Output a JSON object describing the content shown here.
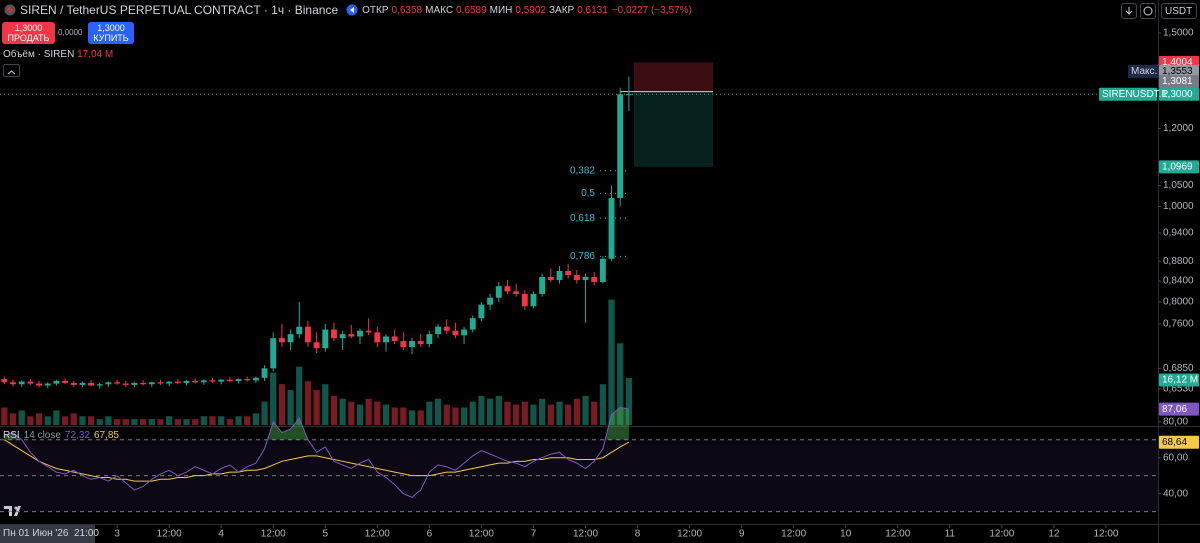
{
  "header": {
    "title": "SIREN / TetherUS PERPETUAL CONTRACT · 1ч · Binance",
    "stats": [
      {
        "label": "ОТКР",
        "value": "0,6358"
      },
      {
        "label": "МАКС",
        "value": "0,6589"
      },
      {
        "label": "МИН",
        "value": "0,5902"
      },
      {
        "label": "ЗАКР",
        "value": "0,6131"
      }
    ],
    "change": "−0,0227 (−3,57%)",
    "currency": "USDT"
  },
  "trade": {
    "sell_price": "1,3000",
    "sell_label": "ПРОДАТЬ",
    "spread": "0,0000",
    "buy_price": "1,3000",
    "buy_label": "КУПИТЬ"
  },
  "volume_legend": {
    "label": "Объём · SIREN",
    "value": "17,04 M"
  },
  "rsi_legend": {
    "label": "RSI",
    "params": "14 close",
    "values": [
      "72,32",
      "67,85"
    ]
  },
  "crosshair_time": "Пн 01 Июн '26  21:00",
  "chart_data": [
    {
      "type": "candlestick",
      "up_color": "#22ab94",
      "down_color": "#f23645",
      "log": true,
      "x": [
        1,
        3,
        5,
        7,
        9,
        11,
        13,
        15,
        17,
        19,
        21,
        23,
        25,
        27,
        29,
        31,
        33,
        35,
        37,
        39,
        41,
        43,
        45,
        47,
        49,
        51,
        53,
        55,
        57,
        59,
        61,
        63,
        65,
        67,
        69,
        71,
        73,
        75,
        77,
        79,
        81,
        83,
        85,
        87,
        89,
        91,
        93,
        95,
        97,
        99,
        101,
        103,
        105,
        107,
        109,
        111,
        113,
        115,
        117,
        119,
        121,
        123,
        125,
        127,
        129,
        131,
        133,
        135,
        137,
        139,
        141,
        143,
        145
      ],
      "open": [
        0.668,
        0.663,
        0.66,
        0.664,
        0.661,
        0.658,
        0.661,
        0.665,
        0.662,
        0.659,
        0.662,
        0.658,
        0.66,
        0.663,
        0.661,
        0.659,
        0.662,
        0.66,
        0.663,
        0.661,
        0.664,
        0.662,
        0.665,
        0.663,
        0.666,
        0.664,
        0.667,
        0.665,
        0.668,
        0.666,
        0.67,
        0.685,
        0.735,
        0.728,
        0.742,
        0.755,
        0.728,
        0.718,
        0.75,
        0.735,
        0.742,
        0.738,
        0.748,
        0.745,
        0.728,
        0.738,
        0.73,
        0.72,
        0.73,
        0.725,
        0.742,
        0.755,
        0.748,
        0.74,
        0.75,
        0.77,
        0.795,
        0.808,
        0.83,
        0.82,
        0.815,
        0.792,
        0.815,
        0.848,
        0.842,
        0.86,
        0.852,
        0.842,
        0.848,
        0.838,
        0.885,
        1.02,
        1.3
      ],
      "high": [
        0.672,
        0.667,
        0.666,
        0.668,
        0.665,
        0.663,
        0.667,
        0.669,
        0.665,
        0.664,
        0.666,
        0.662,
        0.664,
        0.667,
        0.665,
        0.663,
        0.666,
        0.664,
        0.667,
        0.665,
        0.668,
        0.666,
        0.669,
        0.667,
        0.67,
        0.668,
        0.671,
        0.669,
        0.672,
        0.672,
        0.69,
        0.745,
        0.76,
        0.75,
        0.8,
        0.765,
        0.745,
        0.76,
        0.762,
        0.748,
        0.758,
        0.752,
        0.77,
        0.755,
        0.742,
        0.75,
        0.745,
        0.735,
        0.742,
        0.748,
        0.76,
        0.768,
        0.762,
        0.755,
        0.775,
        0.8,
        0.815,
        0.838,
        0.842,
        0.835,
        0.822,
        0.82,
        0.855,
        0.865,
        0.87,
        0.875,
        0.862,
        0.855,
        0.858,
        0.89,
        1.05,
        1.32,
        1.3553
      ],
      "low": [
        0.66,
        0.657,
        0.656,
        0.659,
        0.655,
        0.654,
        0.658,
        0.66,
        0.656,
        0.655,
        0.657,
        0.653,
        0.656,
        0.659,
        0.656,
        0.655,
        0.658,
        0.656,
        0.659,
        0.657,
        0.66,
        0.658,
        0.661,
        0.659,
        0.662,
        0.66,
        0.663,
        0.661,
        0.664,
        0.662,
        0.665,
        0.68,
        0.72,
        0.715,
        0.735,
        0.72,
        0.71,
        0.712,
        0.73,
        0.715,
        0.735,
        0.725,
        0.74,
        0.72,
        0.712,
        0.725,
        0.715,
        0.708,
        0.72,
        0.72,
        0.735,
        0.742,
        0.735,
        0.725,
        0.745,
        0.765,
        0.785,
        0.8,
        0.815,
        0.81,
        0.785,
        0.788,
        0.81,
        0.838,
        0.835,
        0.845,
        0.835,
        0.762,
        0.832,
        0.835,
        0.88,
        1.0,
        1.25
      ],
      "close": [
        0.663,
        0.66,
        0.664,
        0.661,
        0.658,
        0.661,
        0.665,
        0.662,
        0.659,
        0.662,
        0.658,
        0.66,
        0.663,
        0.661,
        0.659,
        0.662,
        0.66,
        0.663,
        0.661,
        0.664,
        0.662,
        0.665,
        0.663,
        0.666,
        0.664,
        0.667,
        0.665,
        0.668,
        0.666,
        0.67,
        0.685,
        0.735,
        0.728,
        0.742,
        0.755,
        0.728,
        0.718,
        0.75,
        0.735,
        0.742,
        0.738,
        0.748,
        0.745,
        0.728,
        0.738,
        0.73,
        0.72,
        0.73,
        0.725,
        0.742,
        0.755,
        0.748,
        0.74,
        0.75,
        0.77,
        0.795,
        0.808,
        0.83,
        0.82,
        0.815,
        0.792,
        0.815,
        0.848,
        0.842,
        0.86,
        0.852,
        0.842,
        0.848,
        0.838,
        0.885,
        1.02,
        1.3,
        1.3
      ],
      "volume": [
        6,
        4,
        5,
        3,
        4,
        3,
        5,
        3,
        4,
        3,
        3,
        2,
        3,
        2,
        2,
        2,
        2,
        2,
        2,
        3,
        2,
        2,
        2,
        3,
        3,
        3,
        2,
        3,
        3,
        4,
        8,
        18,
        14,
        12,
        20,
        15,
        12,
        14,
        10,
        9,
        8,
        7,
        9,
        8,
        7,
        6,
        6,
        5,
        5,
        8,
        9,
        7,
        6,
        6,
        8,
        10,
        9,
        10,
        8,
        7,
        8,
        7,
        9,
        7,
        8,
        7,
        9,
        10,
        8,
        14,
        43,
        28,
        16.12
      ],
      "volume_last_label": "16,12 M",
      "vlim": [
        0,
        48
      ],
      "xlim": [
        0,
        267
      ],
      "xticks": [
        {
          "value": 27,
          "label": "3"
        },
        {
          "value": 39,
          "label": "12:00"
        },
        {
          "value": 51,
          "label": "4"
        },
        {
          "value": 63,
          "label": "12:00"
        },
        {
          "value": 75,
          "label": "5"
        },
        {
          "value": 87,
          "label": "12:00"
        },
        {
          "value": 99,
          "label": "6"
        },
        {
          "value": 111,
          "label": "12:00"
        },
        {
          "value": 123,
          "label": "7"
        },
        {
          "value": 135,
          "label": "12:00"
        },
        {
          "value": 147,
          "label": "8"
        },
        {
          "value": 159,
          "label": "12:00"
        },
        {
          "value": 171,
          "label": "9"
        },
        {
          "value": 183,
          "label": "12:00"
        },
        {
          "value": 195,
          "label": "10"
        },
        {
          "value": 207,
          "label": "12:00"
        },
        {
          "value": 219,
          "label": "11"
        },
        {
          "value": 231,
          "label": "12:00"
        },
        {
          "value": 243,
          "label": "12"
        },
        {
          "value": 255,
          "label": "12:00"
        }
      ],
      "ylim": [
        0.6,
        1.55
      ],
      "yticks": [
        {
          "value": 1.5,
          "label": "1,5000"
        },
        {
          "value": 1.2,
          "label": "1,2000"
        },
        {
          "value": 1.05,
          "label": "1,0500"
        },
        {
          "value": 1.0,
          "label": "1,0000"
        },
        {
          "value": 0.94,
          "label": "0,9400"
        },
        {
          "value": 0.88,
          "label": "0,8800"
        },
        {
          "value": 0.84,
          "label": "0,8400"
        },
        {
          "value": 0.8,
          "label": "0,8000"
        },
        {
          "value": 0.76,
          "label": "0,7600"
        },
        {
          "value": 0.685,
          "label": "0,6850"
        },
        {
          "value": 0.653,
          "label": "0,6530"
        }
      ],
      "position": {
        "stop": {
          "value": 1.4004,
          "label": "1,4004"
        },
        "entry": {
          "value": 1.3081,
          "label": "1,3081"
        },
        "target": {
          "value": 1.0969,
          "label": "1,0969"
        }
      },
      "max": {
        "name": "Макс.",
        "value": 1.3553,
        "label": "1,3553"
      },
      "last": {
        "name": "SIRENUSDT.P",
        "value": 1.3,
        "label": "1,3000"
      },
      "fib": [
        {
          "label": "0,382",
          "value": 1.087
        },
        {
          "label": "0,5",
          "value": 1.031
        },
        {
          "label": "0,618",
          "value": 0.973
        },
        {
          "label": "0,786",
          "value": 0.89
        }
      ]
    },
    {
      "type": "line",
      "series": [
        {
          "color": "#7e57c2",
          "last_label": "87,06",
          "values": [
            72,
            74,
            70,
            63,
            58,
            55,
            52,
            51,
            53,
            50,
            48,
            49,
            47,
            50,
            46,
            42,
            44,
            48,
            51,
            53,
            50,
            52,
            55,
            53,
            51,
            54,
            56,
            52,
            55,
            57,
            65,
            80,
            74,
            76,
            82,
            70,
            63,
            66,
            58,
            56,
            54,
            57,
            59,
            52,
            49,
            45,
            40,
            38,
            42,
            52,
            56,
            55,
            53,
            57,
            61,
            64,
            62,
            60,
            58,
            57,
            55,
            58,
            60,
            62,
            63,
            59,
            57,
            54,
            58,
            65,
            84,
            88,
            87.06
          ]
        },
        {
          "color": "#f7c948",
          "last_label": "68,64",
          "values": [
            70,
            67,
            64,
            61,
            58,
            56,
            54,
            53,
            52,
            51,
            50,
            49,
            49,
            48,
            48,
            47,
            47,
            47,
            48,
            48,
            49,
            49,
            50,
            50,
            51,
            51,
            52,
            52,
            53,
            53,
            54,
            56,
            58,
            59,
            60,
            61,
            61,
            60,
            59,
            58,
            57,
            56,
            55,
            54,
            53,
            52,
            51,
            50,
            50,
            50,
            51,
            52,
            52,
            53,
            54,
            55,
            56,
            57,
            57,
            58,
            58,
            59,
            59,
            60,
            60,
            60,
            59,
            59,
            59,
            60,
            63,
            66,
            68.64
          ]
        }
      ],
      "ylim": [
        27,
        81
      ],
      "yticks": [
        {
          "value": 80,
          "label": "80,00"
        },
        {
          "value": 60,
          "label": "60,00"
        },
        {
          "value": 40,
          "label": "40,00"
        }
      ],
      "levels": [
        70,
        50,
        30
      ],
      "overbought_color": "#4caf50"
    }
  ]
}
